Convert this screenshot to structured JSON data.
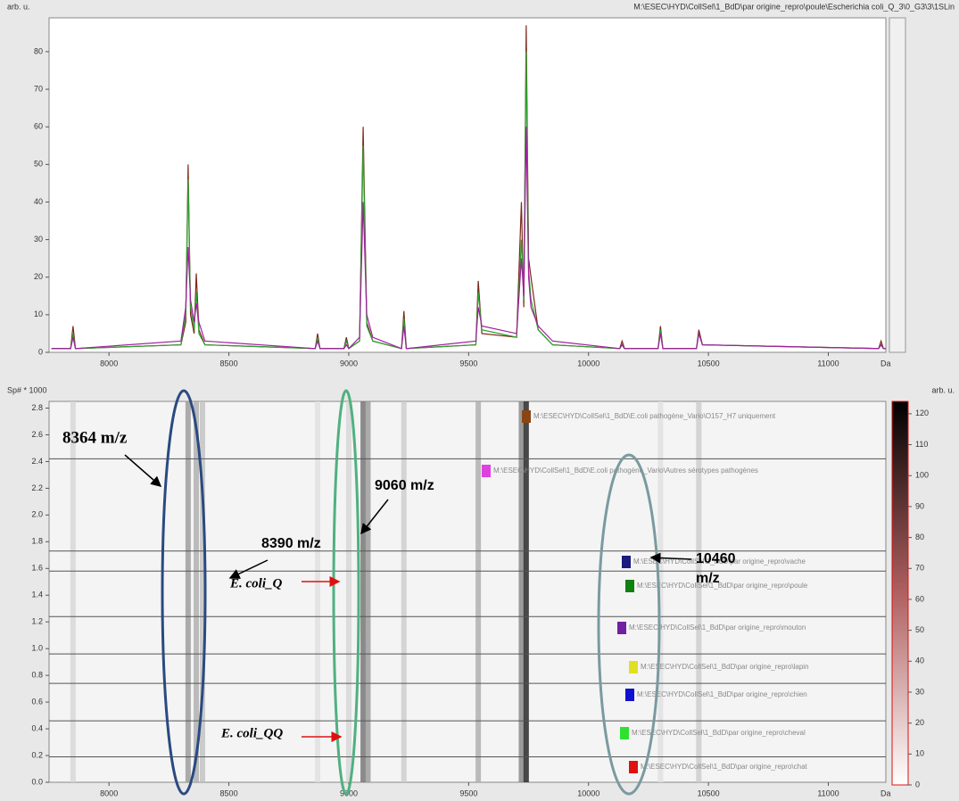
{
  "chart_data": [
    {
      "type": "line",
      "ylabel": "arb. u.",
      "xunit": "Da",
      "file": "M:\\ESEC\\HYD\\CollSel\\1_BdD\\par origine_repro\\poule\\Escherichia coli_Q_3\\0_G3\\3\\1SLin",
      "xlim": [
        7750,
        11240
      ],
      "ylim": [
        0,
        89
      ],
      "xticks": [
        8000,
        8500,
        9000,
        9500,
        10000,
        10500,
        11000
      ],
      "yticks": [
        0,
        10,
        20,
        30,
        40,
        50,
        60,
        70,
        80
      ],
      "x": [
        7760,
        7840,
        7850,
        7860,
        8300,
        8320,
        8330,
        8340,
        8355,
        8364,
        8375,
        8400,
        8860,
        8870,
        8880,
        8980,
        8990,
        9000,
        9045,
        9060,
        9075,
        9100,
        9220,
        9230,
        9240,
        9530,
        9540,
        9555,
        9700,
        9720,
        9730,
        9740,
        9750,
        9760,
        9790,
        9850,
        10130,
        10140,
        10150,
        10290,
        10300,
        10310,
        10450,
        10460,
        10475,
        11210,
        11220,
        11230,
        11240
      ],
      "series": [
        {
          "color": "#7a2a1a",
          "values": [
            1,
            1,
            7,
            1,
            2,
            8,
            50,
            10,
            5,
            21,
            6,
            2,
            1,
            5,
            1,
            1,
            4,
            1,
            3,
            60,
            8,
            3,
            1,
            11,
            1,
            2,
            19,
            5,
            4,
            40,
            12,
            87,
            25,
            20,
            6,
            2,
            1,
            3,
            1,
            1,
            7,
            1,
            1,
            6,
            2,
            1,
            3,
            1,
            1
          ]
        },
        {
          "color": "#2ea02e",
          "values": [
            1,
            1,
            5,
            1,
            2,
            10,
            46,
            12,
            6,
            16,
            5,
            2,
            1,
            4,
            1,
            1,
            3,
            1,
            3,
            55,
            7,
            3,
            1,
            9,
            1,
            2,
            16,
            6,
            4,
            30,
            14,
            80,
            22,
            14,
            6,
            2,
            1,
            2,
            1,
            1,
            6,
            1,
            1,
            5,
            2,
            1,
            2,
            1,
            1
          ]
        },
        {
          "color": "#a020a0",
          "values": [
            1,
            1,
            4,
            1,
            3,
            12,
            28,
            14,
            8,
            13,
            8,
            3,
            1,
            3,
            1,
            1,
            2,
            1,
            4,
            40,
            10,
            4,
            1,
            7,
            1,
            3,
            12,
            7,
            5,
            25,
            15,
            60,
            20,
            12,
            7,
            3,
            1,
            2,
            1,
            1,
            5,
            1,
            1,
            5,
            2,
            1,
            2,
            1,
            1
          ]
        }
      ]
    },
    {
      "type": "gel",
      "ylabel": "Sp# * 1000",
      "xunit": "Da",
      "xlim": [
        7750,
        11240
      ],
      "ylim": [
        0,
        2.85
      ],
      "xticks": [
        8000,
        8500,
        9000,
        9500,
        10000,
        10500,
        11000
      ],
      "yticks": [
        {
          "value": 0,
          "label": "0.0"
        },
        0.2,
        0.4,
        0.6,
        0.8,
        {
          "value": 1,
          "label": "1.0"
        },
        1.2,
        1.4,
        1.6,
        1.8,
        {
          "value": 2,
          "label": "2.0"
        },
        2.2,
        2.4,
        2.6,
        2.8
      ],
      "bands": {
        "x": [
          7850,
          8330,
          8364,
          8390,
          8870,
          9000,
          9060,
          9080,
          9230,
          9540,
          9720,
          9740,
          10300,
          10460
        ],
        "values": [
          20,
          50,
          40,
          30,
          15,
          20,
          70,
          50,
          25,
          40,
          60,
          110,
          15,
          25
        ]
      },
      "group_boundaries": [
        2.42,
        1.73,
        1.58,
        1.24,
        0.96,
        0.74,
        0.46,
        0.19
      ],
      "colorbar": {
        "label": "arb. u.",
        "lim": [
          0,
          124
        ],
        "ticks": [
          0,
          10,
          20,
          30,
          40,
          50,
          60,
          70,
          80,
          90,
          100,
          110,
          120
        ]
      },
      "legend": [
        {
          "color": "#8b4513",
          "label": "M:\\ESEC\\HYD\\CollSel\\1_BdD\\E.coli pathogène_Vario\\O157_H7 uniquement"
        },
        {
          "color": "#e040e0",
          "label": "M:\\ESEC\\HYD\\CollSel\\1_BdD\\E.coli pathogène_Vario\\Autres sérotypes pathogènes"
        },
        {
          "color": "#1a1a80",
          "label": "M:\\ESEC\\HYD\\CollSel\\1_BdD\\par origine_repro\\vache"
        },
        {
          "color": "#108010",
          "label": "M:\\ESEC\\HYD\\CollSel\\1_BdD\\par origine_repro\\poule"
        },
        {
          "color": "#7020a0",
          "label": "M:\\ESEC\\HYD\\CollSel\\1_BdD\\par origine_repro\\mouton"
        },
        {
          "color": "#e0e020",
          "label": "M:\\ESEC\\HYD\\CollSel\\1_BdD\\par origine_repro\\lapin"
        },
        {
          "color": "#1010d0",
          "label": "M:\\ESEC\\HYD\\CollSel\\1_BdD\\par origine_repro\\chien"
        },
        {
          "color": "#30e030",
          "label": "M:\\ESEC\\HYD\\CollSel\\1_BdD\\par origine_repro\\cheval"
        },
        {
          "color": "#e01010",
          "label": "M:\\ESEC\\HYD\\CollSel\\1_BdD\\par origine_repro\\chat"
        }
      ],
      "annotations": [
        "8364 m/z",
        "9060 m/z",
        "8390 m/z",
        "10460 m/z",
        "E. coli_Q",
        "E. coli_QQ"
      ]
    }
  ]
}
